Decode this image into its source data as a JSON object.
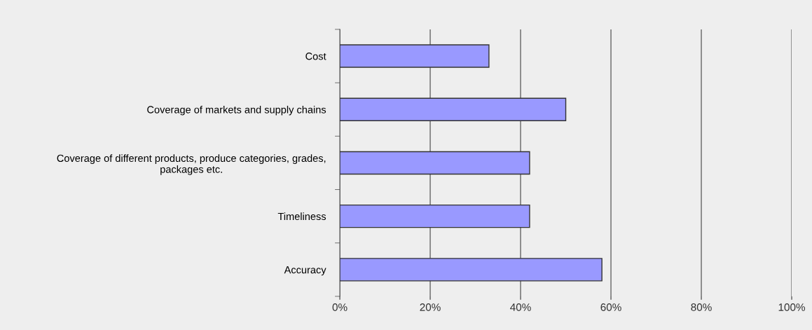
{
  "chart_data": {
    "type": "bar",
    "orientation": "horizontal",
    "categories": [
      "Cost",
      "Coverage of markets and supply chains",
      "Coverage of different products, produce categories, grades,\npackages etc.",
      "Timeliness",
      "Accuracy"
    ],
    "values": [
      33,
      50,
      42,
      42,
      58
    ],
    "color": "#9999ff",
    "xlim": [
      0,
      100
    ],
    "xticks": [
      {
        "value": 0,
        "label": "0%"
      },
      {
        "value": 20,
        "label": "20%"
      },
      {
        "value": 40,
        "label": "40%"
      },
      {
        "value": 60,
        "label": "60%"
      },
      {
        "value": 80,
        "label": "80%"
      },
      {
        "value": 100,
        "label": "100%"
      }
    ],
    "grid": "x",
    "legend": false
  }
}
